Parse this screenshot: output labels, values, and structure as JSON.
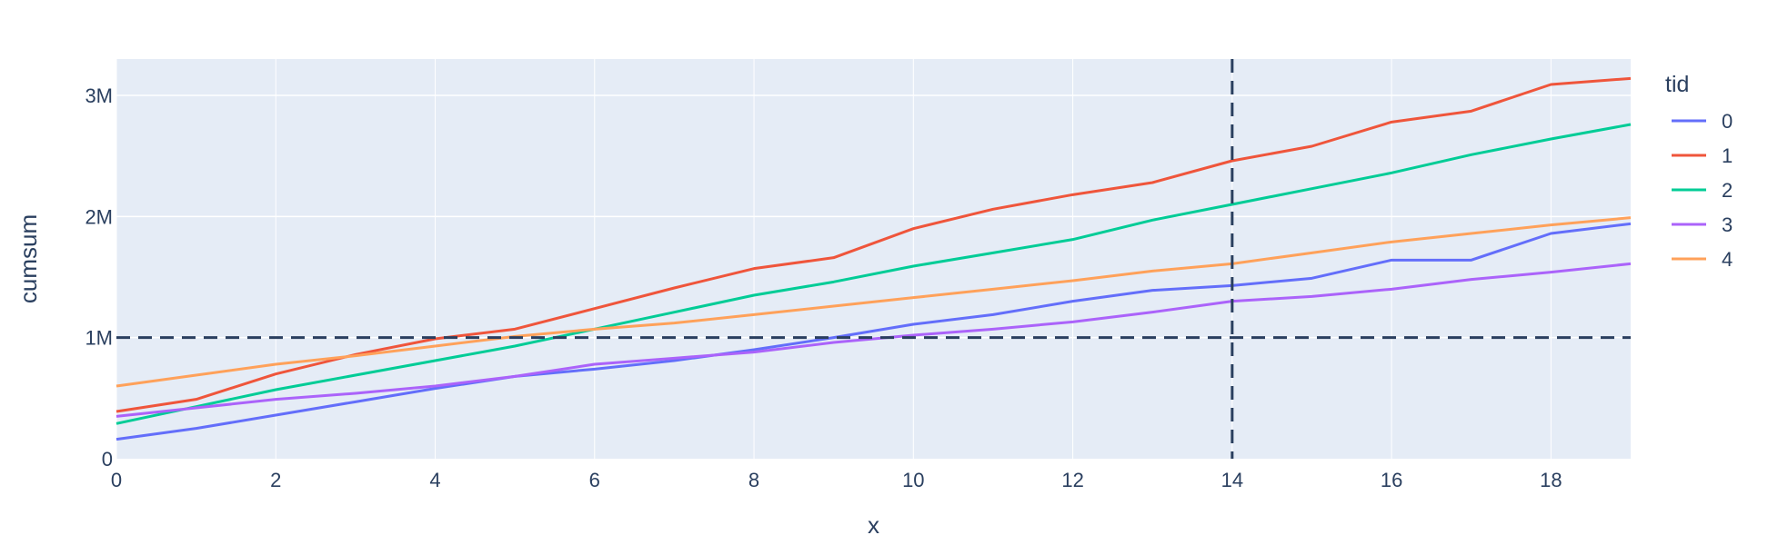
{
  "chart_data": {
    "type": "line",
    "xlabel": "x",
    "ylabel": "cumsum",
    "xlim": [
      0,
      19
    ],
    "ylim": [
      0,
      3300000
    ],
    "x_ticks": [
      0,
      2,
      4,
      6,
      8,
      10,
      12,
      14,
      16,
      18
    ],
    "y_ticks": [
      0,
      1000000,
      2000000,
      3000000
    ],
    "y_tick_labels": [
      "0",
      "1M",
      "2M",
      "3M"
    ],
    "grid": true,
    "legend": {
      "title": "tid",
      "placement": "right"
    },
    "colors": {
      "plot_background": "#e5ecf6",
      "grid": "#ffffff",
      "text": "#2a3f5f",
      "reference_line": "#2a3f5f"
    },
    "reference_lines": [
      {
        "orientation": "horizontal",
        "value": 1000000,
        "style": "dashed"
      },
      {
        "orientation": "vertical",
        "value": 14,
        "style": "dashed"
      }
    ],
    "x": [
      0,
      1,
      2,
      3,
      4,
      5,
      6,
      7,
      8,
      9,
      10,
      11,
      12,
      13,
      14,
      15,
      16,
      17,
      18,
      19
    ],
    "series": [
      {
        "name": "0",
        "color": "#636efa",
        "values": [
          160000,
          250000,
          360000,
          470000,
          580000,
          680000,
          740000,
          810000,
          900000,
          1000000,
          1110000,
          1190000,
          1300000,
          1390000,
          1430000,
          1490000,
          1640000,
          1640000,
          1860000,
          1940000
        ]
      },
      {
        "name": "1",
        "color": "#ef553b",
        "values": [
          390000,
          490000,
          700000,
          860000,
          990000,
          1070000,
          1240000,
          1410000,
          1570000,
          1660000,
          1900000,
          2060000,
          2180000,
          2280000,
          2460000,
          2580000,
          2780000,
          2870000,
          3090000,
          3140000
        ]
      },
      {
        "name": "2",
        "color": "#00cc96",
        "values": [
          290000,
          430000,
          570000,
          690000,
          810000,
          930000,
          1070000,
          1210000,
          1350000,
          1460000,
          1590000,
          1700000,
          1810000,
          1970000,
          2100000,
          2230000,
          2360000,
          2510000,
          2640000,
          2760000
        ]
      },
      {
        "name": "3",
        "color": "#ab63fa",
        "values": [
          350000,
          420000,
          490000,
          540000,
          600000,
          680000,
          780000,
          830000,
          880000,
          960000,
          1020000,
          1070000,
          1130000,
          1210000,
          1300000,
          1340000,
          1400000,
          1480000,
          1540000,
          1610000
        ]
      },
      {
        "name": "4",
        "color": "#ffa15a",
        "values": [
          600000,
          690000,
          780000,
          850000,
          930000,
          1010000,
          1070000,
          1120000,
          1190000,
          1260000,
          1330000,
          1400000,
          1470000,
          1550000,
          1610000,
          1700000,
          1790000,
          1860000,
          1930000,
          1990000
        ]
      }
    ]
  }
}
